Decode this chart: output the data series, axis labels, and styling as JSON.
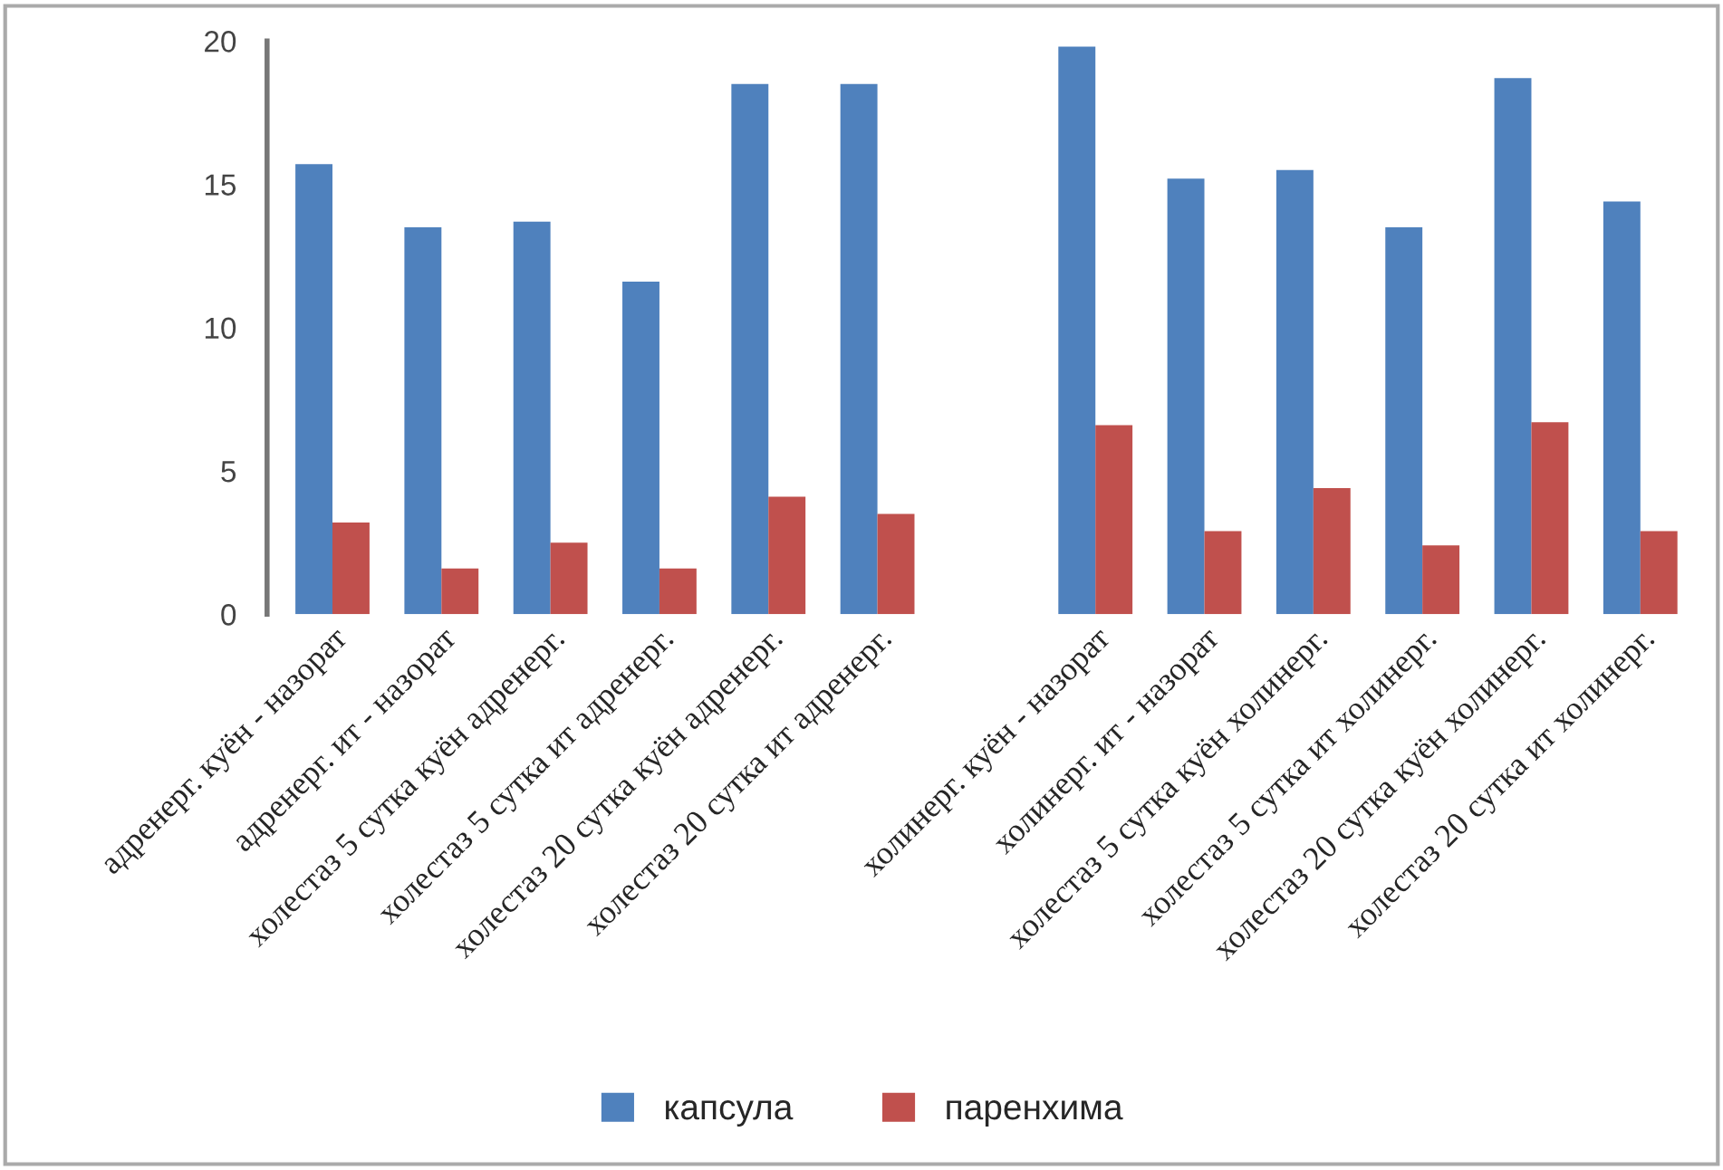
{
  "chart_data": {
    "type": "bar",
    "categories": [
      "адренерг. куён - назорат",
      "адренерг. ит - назорат",
      "холестаз 5 сутка куён адренерг.",
      "холестаз 5 сутка ит адренерг.",
      "холестаз 20 сутка куён адренерг.",
      "холестаз 20 сутка ит адренерг.",
      null,
      "холинерг. куён - назорат",
      "холинерг. ит - назорат",
      "холестаз 5 сутка куён холинерг.",
      "холестаз 5 сутка ит холинерг.",
      "холестаз 20 сутка куён холинерг.",
      "холестаз 20 сутка ит холинерг."
    ],
    "series": [
      {
        "name": "капсула",
        "color": "#4f81bd",
        "values": [
          15.7,
          13.5,
          13.7,
          11.6,
          18.5,
          18.5,
          null,
          19.8,
          15.2,
          15.5,
          13.5,
          18.7,
          14.4
        ]
      },
      {
        "name": "паренхима",
        "color": "#c0504d",
        "values": [
          3.2,
          1.6,
          2.5,
          1.6,
          4.1,
          3.5,
          null,
          6.6,
          2.9,
          4.4,
          2.4,
          6.7,
          2.9
        ]
      }
    ],
    "ylim": [
      0,
      20
    ],
    "yticks": [
      0,
      5,
      10,
      15,
      20
    ],
    "grid": false,
    "legend": "bottom"
  }
}
